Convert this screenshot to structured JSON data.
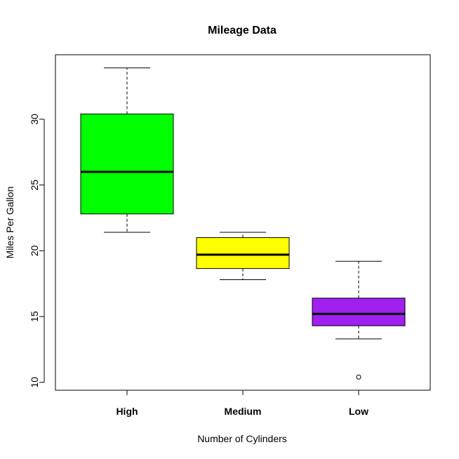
{
  "chart_data": {
    "type": "boxplot",
    "title": "Mileage Data",
    "xlabel": "Number of Cylinders",
    "ylabel": "Miles Per Gallon",
    "ylim": [
      9.4,
      34.9
    ],
    "yticks": [
      10,
      15,
      20,
      25,
      30
    ],
    "grid": false,
    "legend": "none",
    "categories": [
      "High",
      "Medium",
      "Low"
    ],
    "boxes": [
      {
        "category": "High",
        "color": "#00ff00",
        "whisker_low": 21.4,
        "q1": 22.8,
        "median": 26.0,
        "q3": 30.4,
        "whisker_high": 33.9,
        "outliers": []
      },
      {
        "category": "Medium",
        "color": "#ffff00",
        "whisker_low": 17.8,
        "q1": 18.65,
        "median": 19.7,
        "q3": 21.0,
        "whisker_high": 21.4,
        "outliers": []
      },
      {
        "category": "Low",
        "color": "#a020f0",
        "whisker_low": 13.3,
        "q1": 14.3,
        "median": 15.2,
        "q3": 16.4,
        "whisker_high": 19.2,
        "outliers": [
          10.4
        ]
      }
    ]
  }
}
